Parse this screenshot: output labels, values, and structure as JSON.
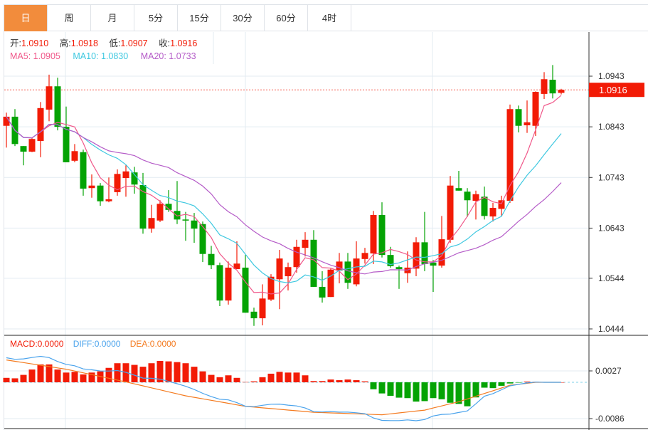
{
  "tabs": [
    "日",
    "周",
    "月",
    "5分",
    "15分",
    "30分",
    "60分",
    "4时"
  ],
  "active_tab": 0,
  "ohlc_info": {
    "open_label": "开:",
    "open": "1.0910",
    "high_label": "高:",
    "high": "1.0918",
    "low_label": "低:",
    "low": "1.0907",
    "close_label": "收:",
    "close": "1.0916"
  },
  "ma_info": {
    "ma5": "MA5: 1.0905",
    "ma10": "MA10: 1.0830",
    "ma20": "MA20: 1.0733"
  },
  "macd_info": {
    "macd": "MACD:0.0000",
    "diff": "DIFF:0.0000",
    "dea": "DEA:0.0000"
  },
  "current_price_label": "1.0916",
  "colors": {
    "up": "#f21b06",
    "down": "#04a304",
    "ma5": "#f0588a",
    "ma10": "#3ec8e0",
    "ma20": "#b55cc8",
    "diff": "#4aa3ec",
    "dea": "#f47b20",
    "accent": "#f28c3c"
  },
  "chart_data": {
    "type": "candlestick",
    "price_axis_ticks": [
      "1.0943",
      "1.0843",
      "1.0743",
      "1.0643",
      "1.0544",
      "1.0444"
    ],
    "price_ylim": [
      1.0444,
      1.0943
    ],
    "macd_axis_ticks": [
      "0.0027",
      "-0.0086"
    ],
    "current_price": 1.0916,
    "candles": [
      [
        1.0845,
        1.0871,
        1.0802,
        1.0863
      ],
      [
        1.0863,
        1.0878,
        1.0805,
        1.0809
      ],
      [
        1.0805,
        1.0805,
        1.0767,
        1.0794
      ],
      [
        1.0794,
        1.0822,
        1.0793,
        1.0819
      ],
      [
        1.0815,
        1.0892,
        1.0783,
        1.088
      ],
      [
        1.0877,
        1.0946,
        1.0854,
        1.0923
      ],
      [
        1.0923,
        1.094,
        1.0836,
        1.0843
      ],
      [
        1.0843,
        1.0883,
        1.0773,
        1.0773
      ],
      [
        1.0776,
        1.0809,
        1.0773,
        1.0795
      ],
      [
        1.0793,
        1.0798,
        1.0707,
        1.0721
      ],
      [
        1.0722,
        1.0749,
        1.0703,
        1.0727
      ],
      [
        1.0727,
        1.0732,
        1.0687,
        1.0696
      ],
      [
        1.0696,
        1.0743,
        1.0694,
        1.07
      ],
      [
        1.0714,
        1.0759,
        1.0707,
        1.075
      ],
      [
        1.0742,
        1.0767,
        1.0705,
        1.0755
      ],
      [
        1.0753,
        1.0764,
        1.0711,
        1.0729
      ],
      [
        1.0728,
        1.0752,
        1.0632,
        1.0642
      ],
      [
        1.0642,
        1.0689,
        1.0634,
        1.0663
      ],
      [
        1.0658,
        1.0698,
        1.0655,
        1.0691
      ],
      [
        1.0691,
        1.0718,
        1.0675,
        1.0679
      ],
      [
        1.0677,
        1.0736,
        1.0651,
        1.066
      ],
      [
        1.066,
        1.0675,
        1.0618,
        1.0658
      ],
      [
        1.0658,
        1.0673,
        1.0614,
        1.0642
      ],
      [
        1.0651,
        1.0656,
        1.0576,
        1.0592
      ],
      [
        1.0592,
        1.0608,
        1.0562,
        1.057
      ],
      [
        1.057,
        1.0575,
        1.0489,
        1.05
      ],
      [
        1.05,
        1.0577,
        1.0492,
        1.0565
      ],
      [
        1.0562,
        1.0617,
        1.0562,
        1.0573
      ],
      [
        1.0565,
        1.059,
        1.0476,
        1.0476
      ],
      [
        1.0478,
        1.0486,
        1.045,
        1.0465
      ],
      [
        1.0465,
        1.0532,
        1.0451,
        1.0504
      ],
      [
        1.0502,
        1.0552,
        1.0499,
        1.0547
      ],
      [
        1.0542,
        1.06,
        1.0483,
        1.0583
      ],
      [
        1.0548,
        1.0575,
        1.052,
        1.0566
      ],
      [
        1.0566,
        1.062,
        1.0555,
        1.0606
      ],
      [
        1.0604,
        1.0635,
        1.0587,
        1.062
      ],
      [
        1.062,
        1.0639,
        1.0527,
        1.0527
      ],
      [
        1.0527,
        1.0558,
        1.0496,
        1.0506
      ],
      [
        1.0507,
        1.0563,
        1.0507,
        1.0561
      ],
      [
        1.0559,
        1.0594,
        1.0534,
        1.0577
      ],
      [
        1.0577,
        1.0594,
        1.0523,
        1.0535
      ],
      [
        1.0532,
        1.0617,
        1.0528,
        1.0583
      ],
      [
        1.0582,
        1.0604,
        1.0573,
        1.0594
      ],
      [
        1.0593,
        1.0677,
        1.0572,
        1.0669
      ],
      [
        1.0669,
        1.0694,
        1.0585,
        1.059
      ],
      [
        1.059,
        1.0606,
        1.0565,
        1.0568
      ],
      [
        1.0566,
        1.0569,
        1.0523,
        1.0562
      ],
      [
        1.0554,
        1.0597,
        1.0535,
        1.0565
      ],
      [
        1.0563,
        1.0625,
        1.0548,
        1.0615
      ],
      [
        1.0615,
        1.0675,
        1.0558,
        1.0572
      ],
      [
        1.0575,
        1.058,
        1.0517,
        1.0569
      ],
      [
        1.0569,
        1.0667,
        1.0565,
        1.0621
      ],
      [
        1.062,
        1.0746,
        1.0614,
        1.0727
      ],
      [
        1.0722,
        1.0756,
        1.0717,
        1.0717
      ],
      [
        1.0715,
        1.0722,
        1.0665,
        1.0698
      ],
      [
        1.0697,
        1.0717,
        1.066,
        1.071
      ],
      [
        1.0705,
        1.0725,
        1.066,
        1.0667
      ],
      [
        1.0666,
        1.0693,
        1.0656,
        1.0683
      ],
      [
        1.0681,
        1.0707,
        1.0667,
        1.0698
      ],
      [
        1.0697,
        1.0887,
        1.0693,
        1.0878
      ],
      [
        1.0878,
        1.0885,
        1.0832,
        1.0845
      ],
      [
        1.0846,
        1.0895,
        1.0831,
        1.0852
      ],
      [
        1.0845,
        1.0913,
        1.0825,
        1.0912
      ],
      [
        1.0908,
        1.0951,
        1.0898,
        1.0937
      ],
      [
        1.0936,
        1.0965,
        1.0899,
        1.0909
      ],
      [
        1.091,
        1.0918,
        1.0907,
        1.0916
      ]
    ],
    "candle_format": [
      "open",
      "high",
      "low",
      "close"
    ],
    "macd_hist": [
      0.00105,
      0.00094,
      0.00176,
      0.00303,
      0.00424,
      0.00424,
      0.00303,
      0.00231,
      0.00248,
      0.00187,
      0.00231,
      0.00259,
      0.00342,
      0.00452,
      0.00452,
      0.00413,
      0.00369,
      0.00452,
      0.00507,
      0.00496,
      0.00479,
      0.00452,
      0.00369,
      0.00259,
      0.00176,
      0.00121,
      0.00165,
      0.00105,
      6e-05,
      0.00022,
      0.00121,
      0.00204,
      0.00248,
      0.00231,
      0.00231,
      0.00165,
      0.00028,
      0.00028,
      0.00066,
      0.0005,
      0.00066,
      0.0005,
      0.00022,
      -0.00165,
      -0.00264,
      -0.0032,
      -0.00364,
      -0.00375,
      -0.00457,
      -0.00446,
      -0.00375,
      -0.00402,
      -0.00485,
      -0.00512,
      -0.00568,
      -0.00358,
      -0.00127,
      -0.00138,
      -0.00083,
      -0.00028,
      -6e-05,
      0.00017,
      0.00011,
      0.0,
      0.0,
      0.0
    ],
    "dea_points": [
      [
        0,
        0.0053
      ],
      [
        7,
        0.0031
      ],
      [
        14,
        0.0001
      ],
      [
        21,
        -0.0032
      ],
      [
        28,
        -0.0057
      ],
      [
        36,
        -0.0071
      ],
      [
        44,
        -0.0077
      ],
      [
        49,
        -0.0066
      ],
      [
        53,
        -0.0046
      ],
      [
        59,
        -0.0007
      ],
      [
        62,
        0.0
      ],
      [
        65,
        0.0
      ]
    ]
  }
}
